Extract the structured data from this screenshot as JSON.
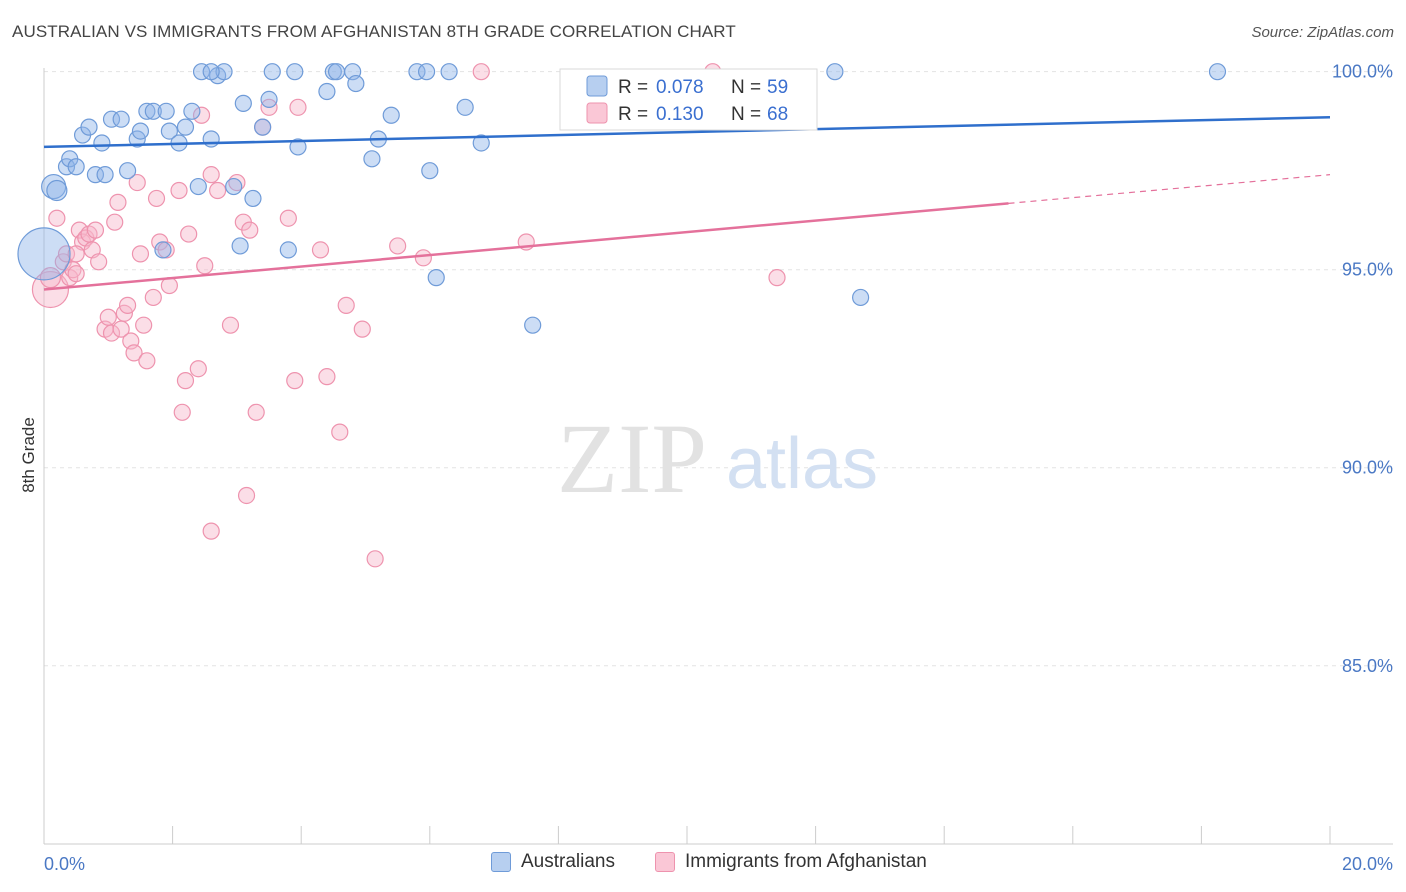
{
  "chart_data": {
    "type": "scatter",
    "title": "AUSTRALIAN VS IMMIGRANTS FROM AFGHANISTAN 8TH GRADE CORRELATION CHART",
    "source": "Source: ZipAtlas.com",
    "xlabel": "",
    "ylabel": "8th Grade",
    "xlim": [
      0,
      20
    ],
    "ylim": [
      80.5,
      100.8
    ],
    "x_tick_labels": [
      "0.0%",
      "20.0%"
    ],
    "y_ticks": [
      100,
      95,
      90,
      85
    ],
    "y_tick_labels": [
      "100.0%",
      "95.0%",
      "90.0%",
      "85.0%"
    ],
    "watermark": {
      "zip": "ZIP",
      "atlas": "atlas"
    },
    "legend": {
      "r_label": "R =",
      "n_label": "N =",
      "rows": [
        {
          "r": "0.078",
          "n": "59"
        },
        {
          "r": "0.130",
          "n": "68"
        }
      ]
    },
    "series": [
      {
        "name": "Australians",
        "color": "#8fb3e8",
        "stroke": "#6f9bd8",
        "line_color": "#2f6fcc",
        "trend": {
          "x0": 0,
          "y0": 98.1,
          "x1": 20,
          "y1": 98.85,
          "solid_to": 20
        },
        "points": [
          [
            0.0,
            95.4,
            26
          ],
          [
            0.15,
            97.1,
            12
          ],
          [
            0.2,
            97.0,
            10
          ],
          [
            0.35,
            97.6,
            8
          ],
          [
            0.4,
            97.8,
            8
          ],
          [
            0.5,
            97.6,
            8
          ],
          [
            0.6,
            98.4,
            8
          ],
          [
            0.7,
            98.6,
            8
          ],
          [
            0.8,
            97.4,
            8
          ],
          [
            0.9,
            98.2,
            8
          ],
          [
            0.95,
            97.4,
            8
          ],
          [
            1.05,
            98.8,
            8
          ],
          [
            1.2,
            98.8,
            8
          ],
          [
            1.3,
            97.5,
            8
          ],
          [
            1.45,
            98.3,
            8
          ],
          [
            1.5,
            98.5,
            8
          ],
          [
            1.6,
            99.0,
            8
          ],
          [
            1.7,
            99.0,
            8
          ],
          [
            1.9,
            99.0,
            8
          ],
          [
            1.95,
            98.5,
            8
          ],
          [
            2.1,
            98.2,
            8
          ],
          [
            2.2,
            98.6,
            8
          ],
          [
            2.3,
            99.0,
            8
          ],
          [
            2.4,
            97.1,
            8
          ],
          [
            2.45,
            100.0,
            8
          ],
          [
            2.6,
            98.3,
            8
          ],
          [
            2.7,
            99.9,
            8
          ],
          [
            2.8,
            100.0,
            8
          ],
          [
            2.95,
            97.1,
            8
          ],
          [
            3.05,
            95.6,
            8
          ],
          [
            3.1,
            99.2,
            8
          ],
          [
            3.25,
            96.8,
            8
          ],
          [
            3.4,
            98.6,
            8
          ],
          [
            3.5,
            99.3,
            8
          ],
          [
            3.55,
            100.0,
            8
          ],
          [
            3.8,
            95.5,
            8
          ],
          [
            3.9,
            100.0,
            8
          ],
          [
            3.95,
            98.1,
            8
          ],
          [
            4.4,
            99.5,
            8
          ],
          [
            4.5,
            100.0,
            8
          ],
          [
            4.55,
            100.0,
            8
          ],
          [
            4.8,
            100.0,
            8
          ],
          [
            4.85,
            99.7,
            8
          ],
          [
            5.1,
            97.8,
            8
          ],
          [
            5.2,
            98.3,
            8
          ],
          [
            5.4,
            98.9,
            8
          ],
          [
            5.8,
            100.0,
            8
          ],
          [
            5.95,
            100.0,
            8
          ],
          [
            6.0,
            97.5,
            8
          ],
          [
            6.3,
            100.0,
            8
          ],
          [
            6.55,
            99.1,
            8
          ],
          [
            6.8,
            98.2,
            8
          ],
          [
            7.6,
            93.6,
            8
          ],
          [
            6.1,
            94.8,
            8
          ],
          [
            1.85,
            95.5,
            8
          ],
          [
            12.3,
            100.0,
            8
          ],
          [
            12.7,
            94.3,
            8
          ],
          [
            18.25,
            100.0,
            8
          ],
          [
            2.6,
            100.0,
            8
          ]
        ]
      },
      {
        "name": "Immigrants from Afghanistan",
        "color": "#f7b5c9",
        "stroke": "#ee93ae",
        "line_color": "#e4719b",
        "trend": {
          "x0": 0,
          "y0": 94.5,
          "x1": 20,
          "y1": 97.4,
          "solid_to": 15.0
        },
        "points": [
          [
            0.1,
            94.5,
            18
          ],
          [
            0.1,
            94.8,
            10
          ],
          [
            0.2,
            96.3,
            8
          ],
          [
            0.3,
            95.2,
            8
          ],
          [
            0.35,
            95.4,
            8
          ],
          [
            0.4,
            94.8,
            8
          ],
          [
            0.45,
            95.0,
            8
          ],
          [
            0.5,
            94.9,
            8
          ],
          [
            0.55,
            96.0,
            8
          ],
          [
            0.6,
            95.7,
            8
          ],
          [
            0.65,
            95.8,
            8
          ],
          [
            0.7,
            95.9,
            8
          ],
          [
            0.75,
            95.5,
            8
          ],
          [
            0.8,
            96.0,
            8
          ],
          [
            0.85,
            95.2,
            8
          ],
          [
            0.95,
            93.5,
            8
          ],
          [
            1.0,
            93.8,
            8
          ],
          [
            1.05,
            93.4,
            8
          ],
          [
            1.1,
            96.2,
            8
          ],
          [
            1.15,
            96.7,
            8
          ],
          [
            1.2,
            93.5,
            8
          ],
          [
            1.25,
            93.9,
            8
          ],
          [
            1.3,
            94.1,
            8
          ],
          [
            1.35,
            93.2,
            8
          ],
          [
            1.4,
            92.9,
            8
          ],
          [
            1.5,
            95.4,
            8
          ],
          [
            1.55,
            93.6,
            8
          ],
          [
            1.6,
            92.7,
            8
          ],
          [
            1.7,
            94.3,
            8
          ],
          [
            1.75,
            96.8,
            8
          ],
          [
            1.8,
            95.7,
            8
          ],
          [
            1.9,
            95.5,
            8
          ],
          [
            1.95,
            94.6,
            8
          ],
          [
            2.1,
            97.0,
            8
          ],
          [
            2.15,
            91.4,
            8
          ],
          [
            2.2,
            92.2,
            8
          ],
          [
            2.25,
            95.9,
            8
          ],
          [
            2.4,
            92.5,
            8
          ],
          [
            2.5,
            95.1,
            8
          ],
          [
            2.6,
            88.4,
            8
          ],
          [
            2.7,
            97.0,
            8
          ],
          [
            2.9,
            93.6,
            8
          ],
          [
            3.0,
            97.2,
            8
          ],
          [
            3.1,
            96.2,
            8
          ],
          [
            3.15,
            89.3,
            8
          ],
          [
            3.3,
            91.4,
            8
          ],
          [
            3.4,
            98.6,
            8
          ],
          [
            3.5,
            99.1,
            8
          ],
          [
            3.8,
            96.3,
            8
          ],
          [
            3.9,
            92.2,
            8
          ],
          [
            3.95,
            99.1,
            8
          ],
          [
            4.3,
            95.5,
            8
          ],
          [
            4.4,
            92.3,
            8
          ],
          [
            4.6,
            90.9,
            8
          ],
          [
            4.7,
            94.1,
            8
          ],
          [
            4.95,
            93.5,
            8
          ],
          [
            5.15,
            87.7,
            8
          ],
          [
            5.5,
            95.6,
            8
          ],
          [
            5.9,
            95.3,
            8
          ],
          [
            6.8,
            100.0,
            8
          ],
          [
            7.5,
            95.7,
            8
          ],
          [
            11.4,
            94.8,
            8
          ],
          [
            10.4,
            100.0,
            8
          ],
          [
            2.45,
            98.9,
            8
          ],
          [
            2.6,
            97.4,
            8
          ],
          [
            1.45,
            97.2,
            8
          ],
          [
            0.5,
            95.4,
            8
          ],
          [
            3.2,
            96.0,
            8
          ]
        ]
      }
    ]
  },
  "bottom_legend": {
    "australians": "Australians",
    "afghanistan": "Immigrants from Afghanistan"
  }
}
